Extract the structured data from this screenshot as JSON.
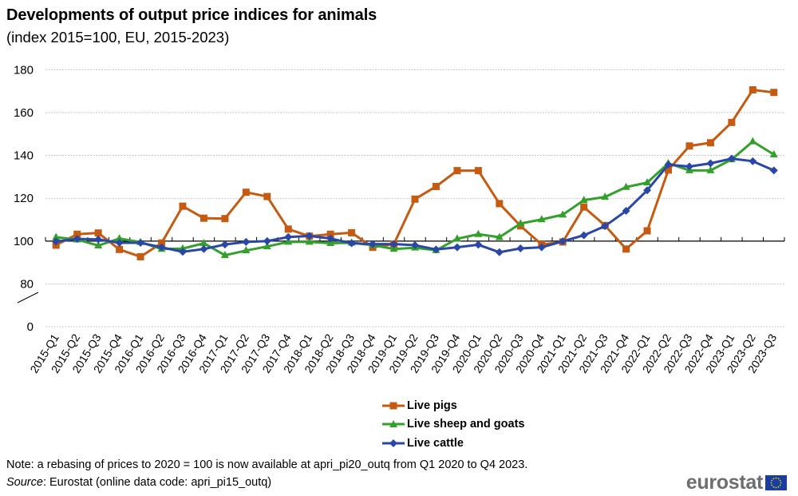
{
  "header": {
    "title": "Developments of output price indices for animals",
    "subtitle": "(index 2015=100, EU, 2015-2023)"
  },
  "footer": {
    "note": "Note: a rebasing of prices to 2020 = 100 is now available at apri_pi20_outq from Q1 2020 to Q4 2023.",
    "source_label": "Source",
    "source_text": ": Eurostat (online data code: apri_pi15_outq)",
    "logo_text": "eurostat",
    "logo_icon": "eu-flag-icon"
  },
  "chart_data": {
    "type": "line",
    "title": "Developments of output price indices for animals",
    "subtitle": "(index 2015=100, EU, 2015-2023)",
    "xlabel": "",
    "ylabel": "",
    "ylim": [
      0,
      180
    ],
    "y_axis_break": [
      0,
      80
    ],
    "yticks": [
      "180",
      "160",
      "140",
      "120",
      "100",
      "80",
      "0"
    ],
    "ytick_values": [
      180,
      160,
      140,
      120,
      100,
      80,
      0
    ],
    "x_axis_crosses_at": 100,
    "grid": true,
    "legend_position": "bottom-center",
    "categories": [
      "2015-Q1",
      "2015-Q2",
      "2015-Q3",
      "2015-Q4",
      "2016-Q1",
      "2016-Q2",
      "2016-Q3",
      "2016-Q4",
      "2017-Q1",
      "2017-Q2",
      "2017-Q3",
      "2017-Q4",
      "2018-Q1",
      "2018-Q2",
      "2018-Q3",
      "2018-Q4",
      "2019-Q1",
      "2019-Q2",
      "2019-Q3",
      "2019-Q4",
      "2020-Q1",
      "2020-Q2",
      "2020-Q3",
      "2020-Q4",
      "2021-Q1",
      "2021-Q2",
      "2021-Q3",
      "2021-Q4",
      "2022-Q1",
      "2022-Q2",
      "2022-Q3",
      "2022-Q4",
      "2023-Q1",
      "2023-Q2",
      "2023-Q3"
    ],
    "series": [
      {
        "name": "Live pigs",
        "color": "#C55A11",
        "marker": "square",
        "values": [
          98.1,
          103.2,
          103.8,
          96.1,
          92.7,
          99.1,
          116.3,
          110.7,
          110.5,
          122.8,
          120.8,
          105.6,
          102.3,
          103.2,
          103.9,
          97.1,
          98.6,
          119.6,
          125.5,
          132.9,
          132.9,
          117.5,
          107.1,
          98.4,
          99.6,
          115.9,
          107.3,
          96.3,
          104.8,
          133.2,
          144.4,
          145.9,
          155.4,
          170.6,
          169.4
        ]
      },
      {
        "name": "Live sheep and goats",
        "color": "#33A02C",
        "marker": "triangle",
        "values": [
          101.8,
          100.7,
          97.9,
          101.2,
          99.5,
          96.3,
          96.5,
          99.0,
          93.4,
          95.6,
          97.5,
          99.6,
          99.6,
          99.0,
          99.2,
          98.1,
          96.3,
          96.9,
          95.7,
          101.1,
          103.2,
          101.8,
          108.2,
          110.1,
          112.3,
          119.1,
          120.6,
          125.2,
          127.3,
          136.3,
          133.0,
          133.0,
          138.1,
          146.5,
          140.4
        ]
      },
      {
        "name": "Live cattle",
        "color": "#2A47A8",
        "marker": "diamond",
        "values": [
          99.8,
          101.0,
          100.8,
          99.2,
          99.2,
          97.1,
          95.0,
          96.3,
          98.4,
          99.6,
          100.0,
          101.9,
          102.4,
          101.2,
          99.0,
          98.6,
          98.6,
          98.1,
          96.1,
          97.1,
          98.3,
          94.8,
          96.6,
          97.1,
          99.9,
          102.7,
          107.0,
          114.1,
          123.7,
          135.7,
          134.8,
          136.3,
          138.5,
          137.3,
          133.0
        ]
      }
    ]
  }
}
